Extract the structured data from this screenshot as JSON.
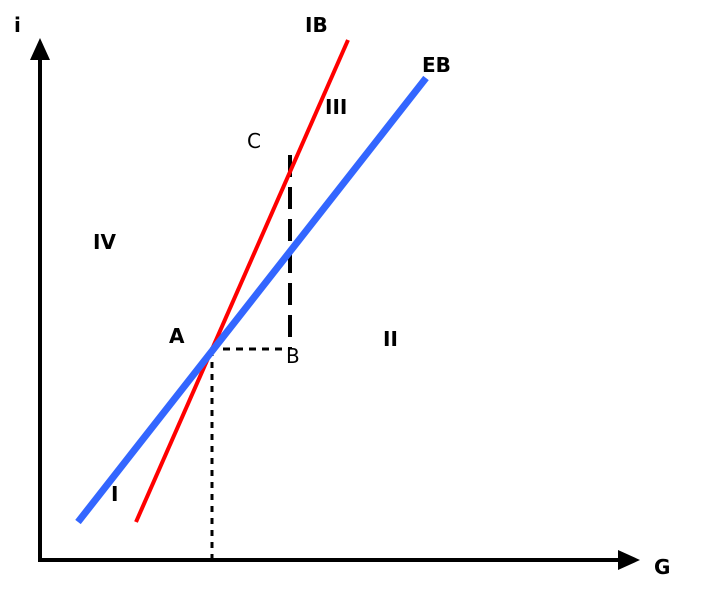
{
  "axes": {
    "y_label": "i",
    "x_label": "G"
  },
  "curves": {
    "ib": {
      "label": "IB",
      "color": "#ff0000"
    },
    "eb": {
      "label": "EB",
      "color": "#3366ff"
    }
  },
  "points": {
    "a": "A",
    "b": "B",
    "c": "C"
  },
  "regions": {
    "r1": "I",
    "r2": "II",
    "r3": "III",
    "r4": "IV"
  }
}
